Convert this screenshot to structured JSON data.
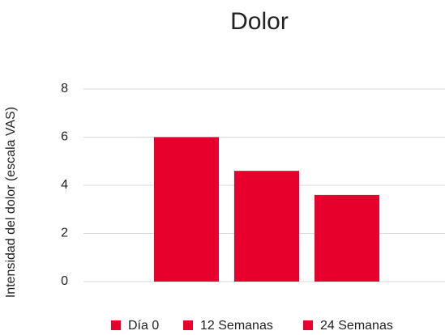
{
  "chart_data": {
    "type": "bar",
    "title": "Dolor",
    "y_label": "Intensidad del dolor (escala VAS)",
    "categories": [
      null
    ],
    "series": [
      {
        "name": "Día 0",
        "color": "#e8002d",
        "values": [
          6.0
        ]
      },
      {
        "name": "12 Semanas",
        "color": "#e8002d",
        "values": [
          4.6
        ]
      },
      {
        "name": "24 Semanas",
        "color": "#e8002d",
        "values": [
          3.6
        ]
      }
    ],
    "ylim": [
      0,
      8
    ],
    "yticks": [
      0,
      2,
      4,
      6,
      8
    ],
    "grid": true,
    "legend": "bottom"
  }
}
